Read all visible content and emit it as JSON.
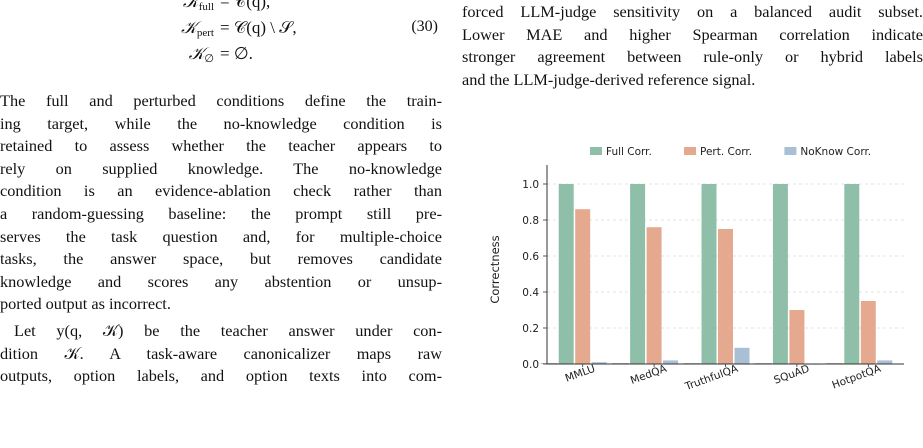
{
  "left": {
    "equations": [
      {
        "lhs": "𝒦",
        "lhs_sub": "full",
        "rhs": "= 𝒞(q),",
        "number": ""
      },
      {
        "lhs": "𝒦",
        "lhs_sub": "pert",
        "rhs": "= 𝒞(q) \\ 𝒮,",
        "number": "(30)"
      },
      {
        "lhs": "𝒦",
        "lhs_sub": "∅",
        "rhs": "= ∅.",
        "number": ""
      }
    ],
    "paragraph1_lines": [
      "The full and perturbed conditions define the train-",
      "ing target, while the no-knowledge condition is",
      "retained to assess whether the teacher appears to",
      "rely on supplied knowledge. The no-knowledge",
      "condition is an evidence-ablation check rather than",
      "a random-guessing baseline: the prompt still pre-",
      "serves the task question and, for multiple-choice",
      "tasks, the answer space, but removes candidate",
      "knowledge and scores any abstention or unsup-",
      "ported output as incorrect."
    ],
    "paragraph2_lines": [
      "Let y(q, 𝒦) be the teacher answer under con-",
      "dition 𝒦.  A task-aware canonicalizer maps raw",
      "outputs, option labels, and option texts into com-"
    ]
  },
  "right": {
    "text_lines": [
      "forced LLM-judge sensitivity on a balanced audit subset.",
      "Lower MAE and higher Spearman correlation indicate",
      "stronger agreement between rule-only or hybrid labels",
      "and the LLM-judge-derived reference signal."
    ]
  },
  "chart_data": {
    "type": "bar",
    "categories": [
      "MMLU",
      "MedQA",
      "TruthfulQA",
      "SQuAD",
      "HotpotQA"
    ],
    "series": [
      {
        "name": "Full Corr.",
        "color": "#8fbfa8",
        "values": [
          1.0,
          1.0,
          1.0,
          1.0,
          1.0
        ]
      },
      {
        "name": "Pert. Corr.",
        "color": "#e4a98f",
        "values": [
          0.86,
          0.76,
          0.75,
          0.3,
          0.35
        ]
      },
      {
        "name": "NoKnow Corr.",
        "color": "#a9bfd6",
        "values": [
          0.01,
          0.02,
          0.09,
          0.0,
          0.02
        ]
      }
    ],
    "first_stub": 0.005,
    "ylabel": "Correctness",
    "xlabel": "",
    "ylim": [
      0,
      1.05
    ],
    "yticks": [
      "0.0",
      "0.2",
      "0.4",
      "0.6",
      "0.8",
      "1.0"
    ],
    "legend_position": "top",
    "grid": true
  }
}
